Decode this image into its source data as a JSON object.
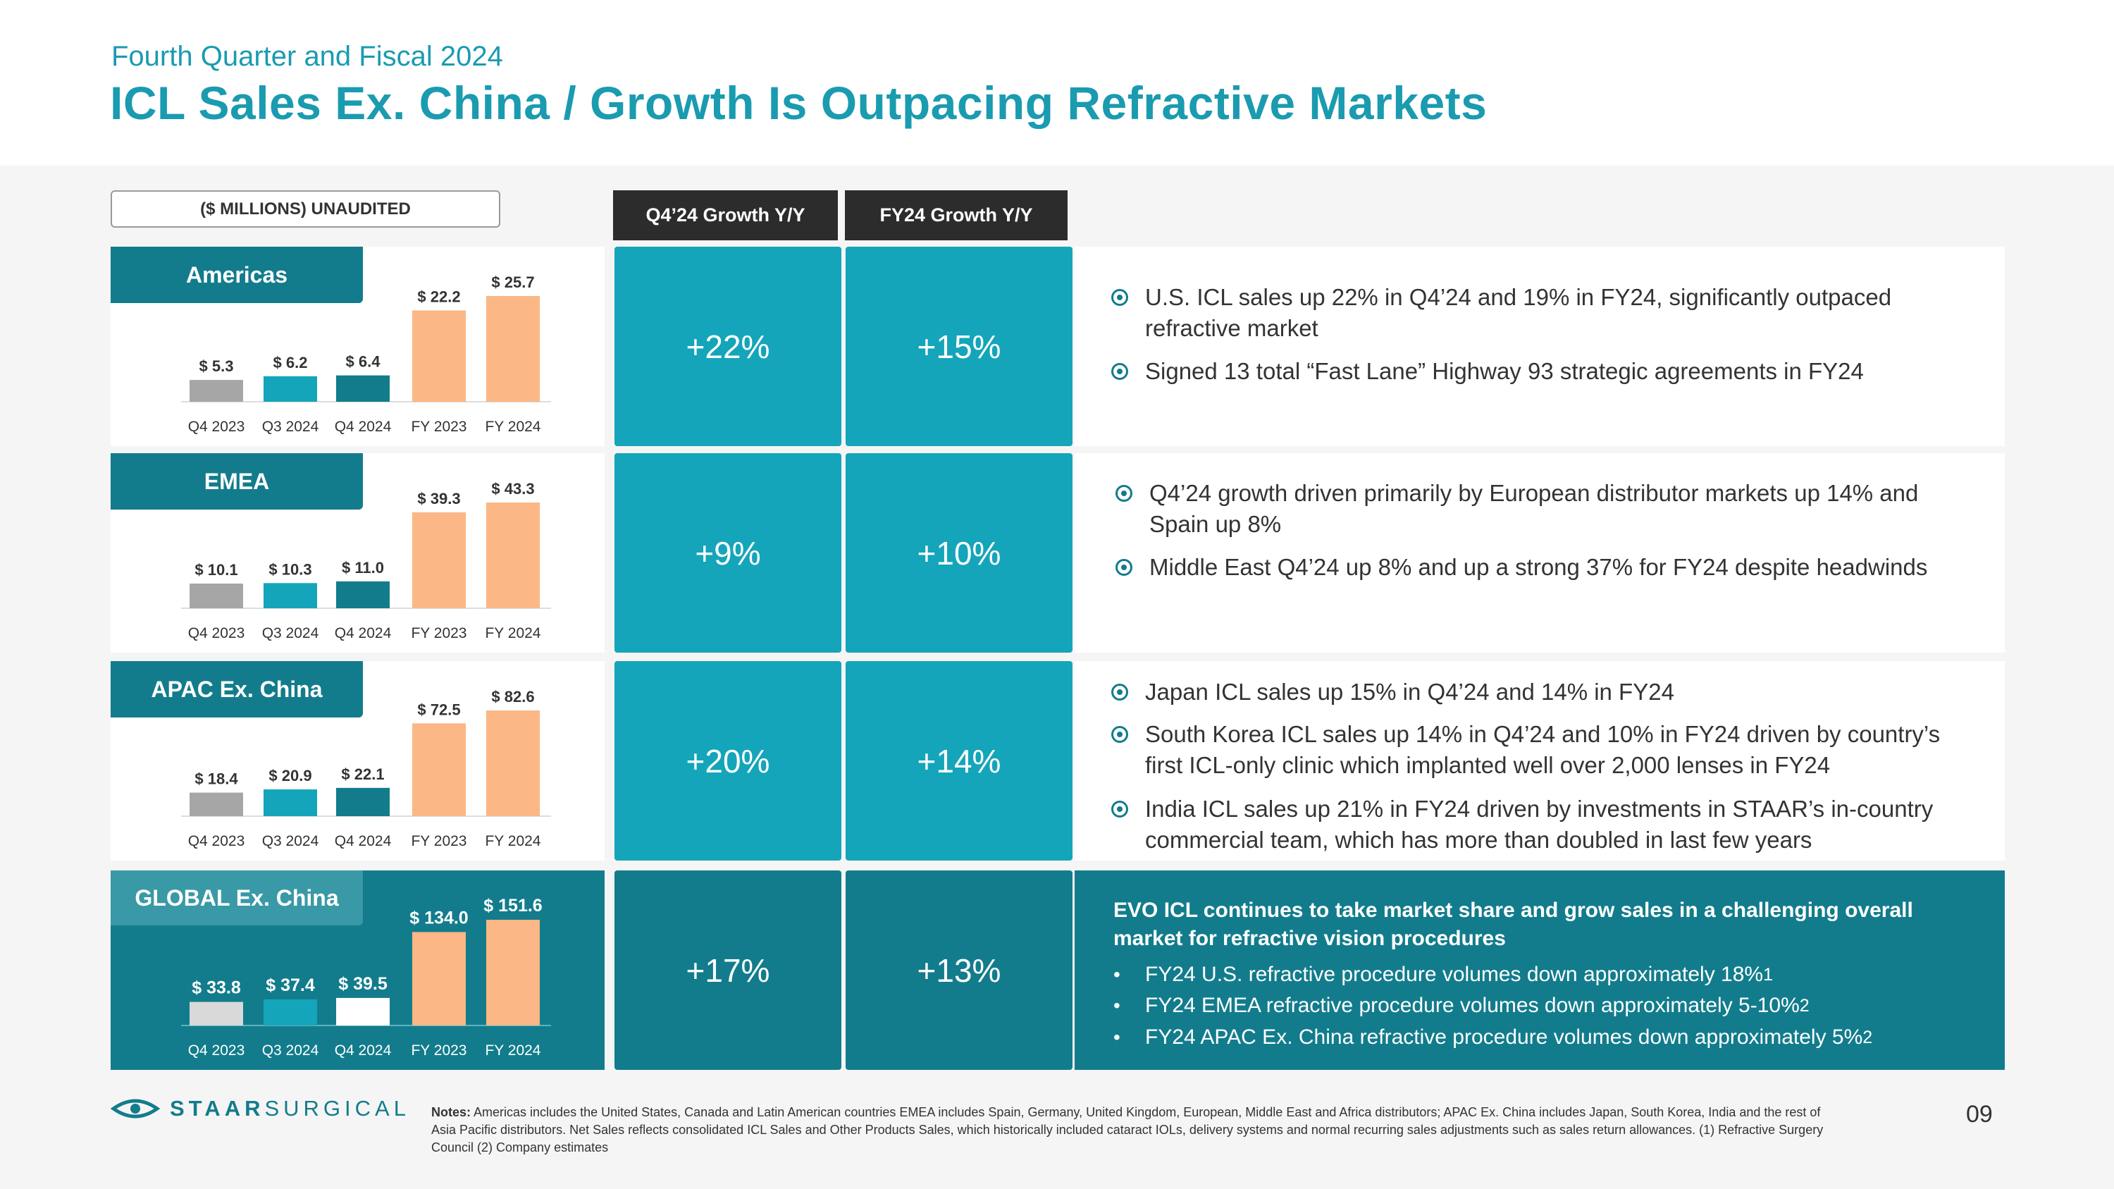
{
  "header": {
    "subtitle": "Fourth Quarter and Fiscal 2024",
    "title": "ICL Sales Ex. China / Growth Is Outpacing Refractive Markets"
  },
  "unaudited_label": "($ MILLIONS) UNAUDITED",
  "columns": {
    "q4": "Q4’24 Growth Y/Y",
    "fy": "FY24 Growth Y/Y"
  },
  "colors": {
    "teal_dark": "#127c8c",
    "teal_light": "#14a5ba",
    "gray_bar": "#a6a6a6",
    "orange_bar": "#fbb785",
    "title": "#1a9bb0"
  },
  "chart_data": [
    {
      "type": "bar",
      "region": "Americas",
      "categories": [
        "Q4 2023",
        "Q3 2024",
        "Q4 2024",
        "FY 2023",
        "FY 2024"
      ],
      "values": [
        5.3,
        6.2,
        6.4,
        22.2,
        25.7
      ],
      "labels": [
        "$ 5.3",
        "$ 6.2",
        "$ 6.4",
        "$ 22.2",
        "$ 25.7"
      ],
      "unit": "$ millions"
    },
    {
      "type": "bar",
      "region": "EMEA",
      "categories": [
        "Q4 2023",
        "Q3 2024",
        "Q4 2024",
        "FY 2023",
        "FY 2024"
      ],
      "values": [
        10.1,
        10.3,
        11.0,
        39.3,
        43.3
      ],
      "labels": [
        "$ 10.1",
        "$ 10.3",
        "$ 11.0",
        "$ 39.3",
        "$ 43.3"
      ],
      "unit": "$ millions"
    },
    {
      "type": "bar",
      "region": "APAC Ex. China",
      "categories": [
        "Q4 2023",
        "Q3 2024",
        "Q4 2024",
        "FY 2023",
        "FY 2024"
      ],
      "values": [
        18.4,
        20.9,
        22.1,
        72.5,
        82.6
      ],
      "labels": [
        "$ 18.4",
        "$ 20.9",
        "$ 22.1",
        "$ 72.5",
        "$ 82.6"
      ],
      "unit": "$ millions"
    },
    {
      "type": "bar",
      "region": "GLOBAL Ex. China",
      "categories": [
        "Q4 2023",
        "Q3 2024",
        "Q4 2024",
        "FY 2023",
        "FY 2024"
      ],
      "values": [
        33.8,
        37.4,
        39.5,
        134.0,
        151.6
      ],
      "labels": [
        "$ 33.8",
        "$ 37.4",
        "$ 39.5",
        "$ 134.0",
        "$ 151.6"
      ],
      "unit": "$ millions"
    }
  ],
  "rows": [
    {
      "q4": "+22%",
      "fy": "+15%",
      "bullets": [
        "U.S. ICL sales up 22% in Q4’24 and 19% in FY24, significantly outpaced refractive market",
        "Signed 13 total “Fast Lane” Highway 93 strategic agreements in FY24"
      ]
    },
    {
      "q4": "+9%",
      "fy": "+10%",
      "bullets": [
        "Q4’24 growth driven primarily by European distributor markets up 14% and Spain up 8%",
        "Middle East Q4’24 up 8% and up a strong 37% for FY24 despite headwinds"
      ]
    },
    {
      "q4": "+20%",
      "fy": "+14%",
      "bullets": [
        "Japan ICL sales up 15% in Q4’24 and 14% in FY24",
        "South Korea ICL sales up 14% in Q4’24 and 10% in FY24 driven by country’s first ICL-only clinic which implanted well over 2,000 lenses in FY24",
        "India ICL sales up 21% in FY24 driven by investments in STAAR’s in-country commercial team, which has more than doubled in last few years"
      ]
    },
    {
      "q4": "+17%",
      "fy": "+13%"
    }
  ],
  "global_box": {
    "headline": "EVO ICL continues to take market share and grow sales in a challenging overall market for refractive vision procedures",
    "items": [
      {
        "text": "FY24 U.S. refractive procedure volumes down approximately 18%",
        "sup": "1"
      },
      {
        "text": "FY24 EMEA refractive procedure volumes down approximately 5-10%",
        "sup": "2"
      },
      {
        "text": "FY24 APAC Ex. China refractive procedure volumes down approximately 5%",
        "sup": "2"
      }
    ],
    "bullet": "•"
  },
  "footer": {
    "logo_bold": "STAAR",
    "logo_light": "SURGICAL",
    "notes_label": "Notes:",
    "notes_text": " Americas includes the United States, Canada and Latin American countries  EMEA includes Spain, Germany, United Kingdom, European, Middle East and Africa distributors; APAC Ex. China includes Japan, South Korea, India and the rest of Asia Pacific distributors. Net Sales reflects consolidated ICL Sales and Other Products Sales, which historically included cataract IOLs, delivery systems and normal recurring sales adjustments such as sales return allowances. (1) Refractive Surgery Council (2) Company estimates",
    "page_number": "09"
  }
}
